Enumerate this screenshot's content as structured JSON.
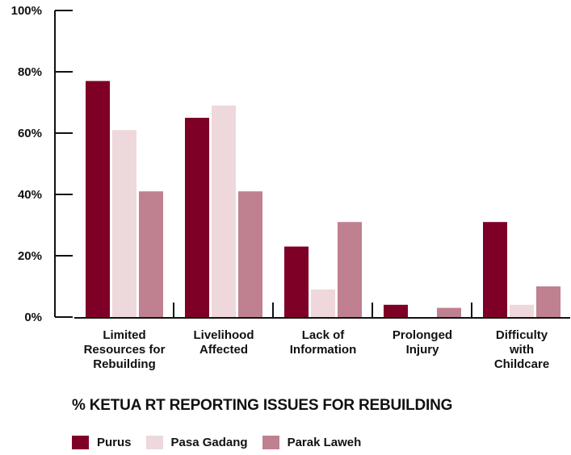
{
  "chart_data": {
    "type": "bar",
    "title": "% KETUA RT REPORTING ISSUES FOR REBUILDING",
    "categories": [
      [
        "Limited",
        "Resources for",
        "Rebuilding"
      ],
      [
        "Livelihood",
        "Affected"
      ],
      [
        "Lack of",
        "Information"
      ],
      [
        "Prolonged",
        "Injury"
      ],
      [
        "Difficulty",
        "with",
        "Childcare"
      ]
    ],
    "series": [
      {
        "name": "Purus",
        "color": "#7f0027",
        "values": [
          77,
          65,
          23,
          4,
          31
        ]
      },
      {
        "name": "Pasa Gadang",
        "color": "#eed8dc",
        "values": [
          61,
          69,
          9,
          0,
          4
        ]
      },
      {
        "name": "Parak Laweh",
        "color": "#bf8090",
        "values": [
          41,
          41,
          31,
          3,
          10
        ]
      }
    ],
    "ylim": [
      0,
      100
    ],
    "yticks": [
      0,
      20,
      40,
      60,
      80,
      100
    ],
    "ytick_labels": [
      "0%",
      "20%",
      "40%",
      "60%",
      "80%",
      "100%"
    ],
    "legend_position": "bottom-left",
    "grid": false
  }
}
